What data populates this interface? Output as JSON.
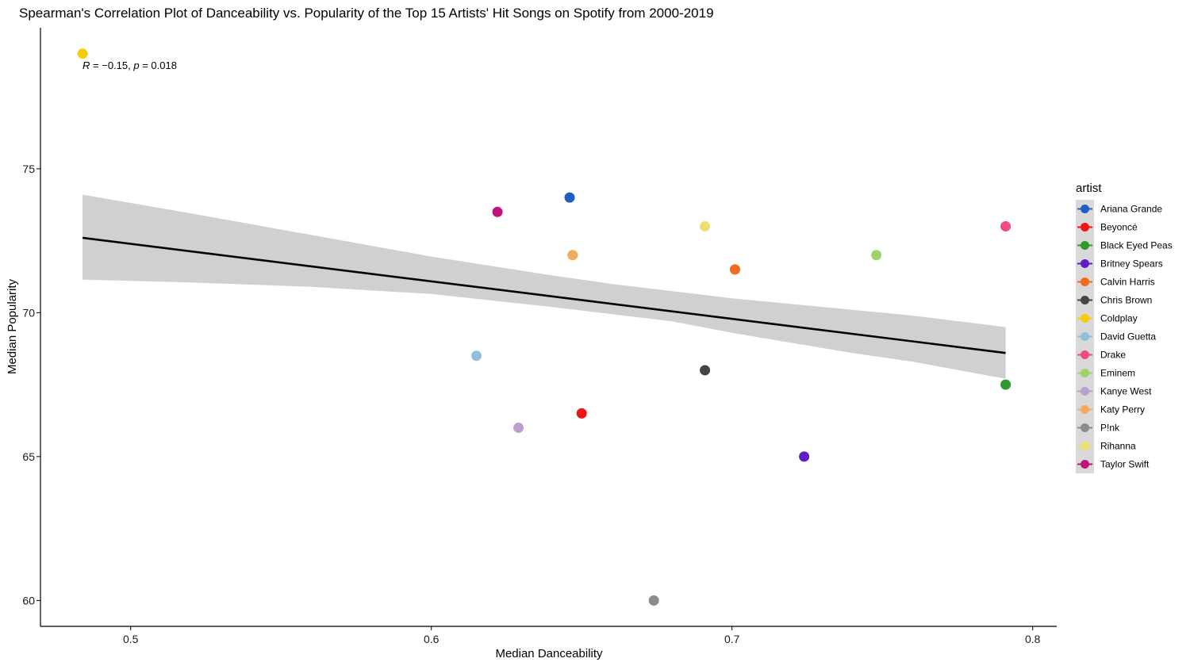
{
  "chart_data": {
    "type": "scatter",
    "title": "Spearman's Correlation Plot of Danceability vs. Popularity of the Top 15 Artists' Hit Songs on Spotify from 2000-2019",
    "xlabel": "Median Danceability",
    "ylabel": "Median Popularity",
    "xlim": [
      0.47,
      0.808
    ],
    "ylim": [
      59.1,
      79.9
    ],
    "x_ticks": [
      0.5,
      0.6,
      0.7,
      0.8
    ],
    "x_tick_labels": [
      "0.5",
      "0.6",
      "0.7",
      "0.8"
    ],
    "y_ticks": [
      60,
      65,
      70,
      75
    ],
    "y_tick_labels": [
      "60",
      "65",
      "70",
      "75"
    ],
    "grid": false,
    "legend": {
      "title": "artist",
      "position": "right"
    },
    "annotation": {
      "prefix": "R",
      "text": " = −0.15, ",
      "p_label": "p",
      "p_text": " = 0.018",
      "x": 0.484,
      "y": 78.6
    },
    "series": [
      {
        "name": "Ariana Grande",
        "x": 0.646,
        "y": 74.0,
        "color": "#1f5fbf"
      },
      {
        "name": "Beyoncé",
        "x": 0.65,
        "y": 66.5,
        "color": "#f01414"
      },
      {
        "name": "Black Eyed Peas",
        "x": 0.791,
        "y": 67.5,
        "color": "#2e9a2e"
      },
      {
        "name": "Britney Spears",
        "x": 0.724,
        "y": 65.0,
        "color": "#5e1ec4"
      },
      {
        "name": "Calvin Harris",
        "x": 0.701,
        "y": 71.5,
        "color": "#f26a1b"
      },
      {
        "name": "Chris Brown",
        "x": 0.691,
        "y": 68.0,
        "color": "#444444"
      },
      {
        "name": "Coldplay",
        "x": 0.484,
        "y": 79.0,
        "color": "#f8cc0a"
      },
      {
        "name": "David Guetta",
        "x": 0.615,
        "y": 68.5,
        "color": "#90bfdc"
      },
      {
        "name": "Drake",
        "x": 0.791,
        "y": 73.0,
        "color": "#ef4c80"
      },
      {
        "name": "Eminem",
        "x": 0.748,
        "y": 72.0,
        "color": "#9dd36b"
      },
      {
        "name": "Kanye West",
        "x": 0.629,
        "y": 66.0,
        "color": "#bb9fd1"
      },
      {
        "name": "Katy Perry",
        "x": 0.647,
        "y": 72.0,
        "color": "#f4aa5e"
      },
      {
        "name": "P!nk",
        "x": 0.674,
        "y": 60.0,
        "color": "#8b8b8b"
      },
      {
        "name": "Rihanna",
        "x": 0.691,
        "y": 73.0,
        "color": "#ebe070"
      },
      {
        "name": "Taylor Swift",
        "x": 0.622,
        "y": 73.5,
        "color": "#c0147c"
      }
    ],
    "regression": {
      "x_start": 0.484,
      "y_start": 72.6,
      "x_end": 0.791,
      "y_end": 68.6,
      "ci_upper": [
        [
          0.484,
          74.1
        ],
        [
          0.52,
          73.45
        ],
        [
          0.56,
          72.7
        ],
        [
          0.6,
          71.95
        ],
        [
          0.64,
          71.3
        ],
        [
          0.66,
          71.0
        ],
        [
          0.68,
          70.75
        ],
        [
          0.7,
          70.5
        ],
        [
          0.72,
          70.3
        ],
        [
          0.74,
          70.1
        ],
        [
          0.76,
          69.9
        ],
        [
          0.791,
          69.5
        ]
      ],
      "ci_lower": [
        [
          0.484,
          71.15
        ],
        [
          0.52,
          71.05
        ],
        [
          0.56,
          70.9
        ],
        [
          0.6,
          70.65
        ],
        [
          0.64,
          70.2
        ],
        [
          0.66,
          69.95
        ],
        [
          0.68,
          69.7
        ],
        [
          0.7,
          69.3
        ],
        [
          0.72,
          68.95
        ],
        [
          0.74,
          68.6
        ],
        [
          0.76,
          68.3
        ],
        [
          0.791,
          67.7
        ]
      ],
      "line_color": "#000000",
      "band_color": "#d0d0d0"
    }
  }
}
